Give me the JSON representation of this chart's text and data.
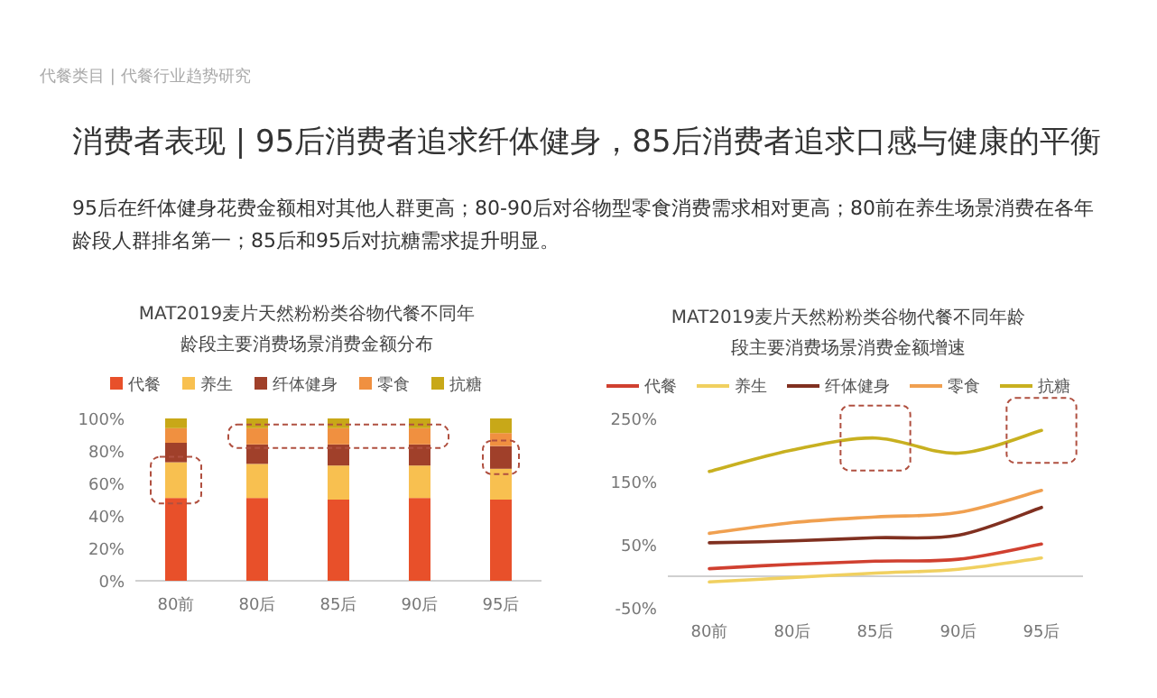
{
  "chart_data": [
    {
      "type": "other",
      "title": "消费者表现 | 95后消费者追求纤体健身，85后消费者追求口感与健康的平衡",
      "annotations": [
        "代餐类目 | 代餐行业趋势研究",
        "95后在纤体健身花费金额相对其他人群更高；80-90后对谷物型零食消费需求相对更高；80前在养生场景消费在各年龄段人群排名第一；85后和95后对抗糖需求提升明显。"
      ]
    },
    {
      "type": "bar",
      "stacked": true,
      "title": "MAT2019麦片天然粉粉类谷物代餐不同年龄段主要消费场景消费金额分布",
      "categories": [
        "80前",
        "80后",
        "85后",
        "90后",
        "95后"
      ],
      "legend": "top",
      "ylim": [
        0,
        100
      ],
      "yticks": [
        {
          "value": 0,
          "label": "0%"
        },
        {
          "value": 20,
          "label": "20%"
        },
        {
          "value": 40,
          "label": "40%"
        },
        {
          "value": 60,
          "label": "60%"
        },
        {
          "value": 80,
          "label": "80%"
        },
        {
          "value": 100,
          "label": "100%"
        }
      ],
      "series": [
        {
          "name": "代餐",
          "color": "#e8502a",
          "values": [
            51,
            51,
            50,
            51,
            50
          ]
        },
        {
          "name": "养生",
          "color": "#f8c050",
          "values": [
            22,
            21,
            21,
            20,
            19
          ]
        },
        {
          "name": "纤体健身",
          "color": "#a0402a",
          "values": [
            12,
            12,
            13,
            13,
            14
          ]
        },
        {
          "name": "零食",
          "color": "#f09040",
          "values": [
            9,
            10,
            10,
            10,
            8
          ]
        },
        {
          "name": "抗糖",
          "color": "#c8a818",
          "values": [
            6,
            6,
            6,
            6,
            9
          ]
        }
      ]
    },
    {
      "type": "line",
      "title": "MAT2019麦片天然粉粉类谷物代餐不同年龄段主要消费场景消费金额增速",
      "categories": [
        "80前",
        "80后",
        "85后",
        "90后",
        "95后"
      ],
      "legend": "top",
      "ylim": [
        -50,
        250
      ],
      "yticks": [
        {
          "value": -50,
          "label": "-50%"
        },
        {
          "value": 50,
          "label": "50%"
        },
        {
          "value": 150,
          "label": "150%"
        },
        {
          "value": 250,
          "label": "250%"
        }
      ],
      "series": [
        {
          "name": "代餐",
          "color": "#d04030",
          "values": [
            12,
            19,
            24,
            27,
            51
          ]
        },
        {
          "name": "养生",
          "color": "#f0d060",
          "values": [
            -9,
            -2,
            5,
            11,
            29
          ]
        },
        {
          "name": "纤体健身",
          "color": "#803020",
          "values": [
            53,
            56,
            61,
            65,
            109
          ]
        },
        {
          "name": "零食",
          "color": "#f0a050",
          "values": [
            68,
            85,
            94,
            101,
            136
          ]
        },
        {
          "name": "抗糖",
          "color": "#c8b020",
          "values": [
            166,
            200,
            219,
            195,
            231
          ]
        }
      ]
    }
  ]
}
